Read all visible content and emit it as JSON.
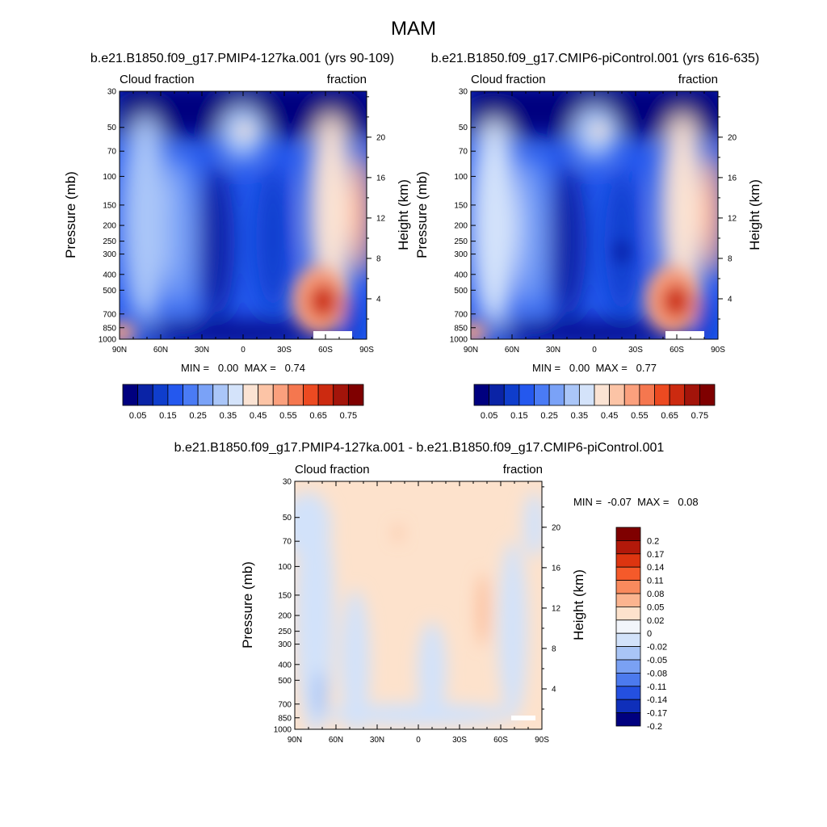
{
  "figure_title": "MAM",
  "chart_data": [
    {
      "type": "heatmap",
      "title": "b.e21.B1850.f09_g17.PMIP4-127ka.001 (yrs 90-109)",
      "left_string": "Cloud fraction",
      "right_string": "fraction",
      "ylabel": "Pressure (mb)",
      "ylabel_right": "Height (km)",
      "x_ticks": [
        "90N",
        "60N",
        "30N",
        "0",
        "30S",
        "60S",
        "90S"
      ],
      "y_ticks": [
        "30",
        "50",
        "70",
        "100",
        "150",
        "200",
        "250",
        "300",
        "400",
        "500",
        "700",
        "850",
        "1000"
      ],
      "y_ticks_right": [
        "20",
        "16",
        "12",
        "8",
        "4"
      ],
      "min_max_text": "MIN =   0.00  MAX =   0.74",
      "min": 0.0,
      "max": 0.74,
      "colorbar_labels": [
        "0.05",
        "0.15",
        "0.25",
        "0.35",
        "0.45",
        "0.55",
        "0.65",
        "0.75"
      ]
    },
    {
      "type": "heatmap",
      "title": "b.e21.B1850.f09_g17.CMIP6-piControl.001 (yrs 616-635)",
      "left_string": "Cloud fraction",
      "right_string": "fraction",
      "ylabel": "Pressure (mb)",
      "ylabel_right": "Height (km)",
      "x_ticks": [
        "90N",
        "60N",
        "30N",
        "0",
        "30S",
        "60S",
        "90S"
      ],
      "y_ticks": [
        "30",
        "50",
        "70",
        "100",
        "150",
        "200",
        "250",
        "300",
        "400",
        "500",
        "700",
        "850",
        "1000"
      ],
      "y_ticks_right": [
        "20",
        "16",
        "12",
        "8",
        "4"
      ],
      "min_max_text": "MIN =   0.00  MAX =   0.77",
      "min": 0.0,
      "max": 0.77,
      "colorbar_labels": [
        "0.05",
        "0.15",
        "0.25",
        "0.35",
        "0.45",
        "0.55",
        "0.65",
        "0.75"
      ]
    },
    {
      "type": "heatmap",
      "title": "b.e21.B1850.f09_g17.PMIP4-127ka.001 - b.e21.B1850.f09_g17.CMIP6-piControl.001",
      "left_string": "Cloud fraction",
      "right_string": "fraction",
      "ylabel": "Pressure (mb)",
      "ylabel_right": "Height (km)",
      "x_ticks": [
        "90N",
        "60N",
        "30N",
        "0",
        "30S",
        "60S",
        "90S"
      ],
      "y_ticks": [
        "30",
        "50",
        "70",
        "100",
        "150",
        "200",
        "250",
        "300",
        "400",
        "500",
        "700",
        "850",
        "1000"
      ],
      "y_ticks_right": [
        "20",
        "16",
        "12",
        "8",
        "4"
      ],
      "min_max_text": "MIN =  -0.07  MAX =   0.08",
      "min": -0.07,
      "max": 0.08,
      "colorbar_labels": [
        "0.2",
        "0.17",
        "0.14",
        "0.11",
        "0.08",
        "0.05",
        "0.02",
        "0",
        "-0.02",
        "-0.05",
        "-0.08",
        "-0.11",
        "-0.14",
        "-0.17",
        "-0.2"
      ]
    }
  ],
  "palettes": {
    "cloud": [
      "#00007f",
      "#0a23a6",
      "#0f3dcc",
      "#2458ee",
      "#4a7bf5",
      "#7aa2f7",
      "#aac6f8",
      "#d4e3fa",
      "#fbe3d3",
      "#fcc4a6",
      "#fba07d",
      "#f5774f",
      "#ec4a21",
      "#cc2a10",
      "#a3140a",
      "#7f0000"
    ],
    "diff": [
      "#7f0000",
      "#b2190a",
      "#dd3510",
      "#f55a2a",
      "#f98a5d",
      "#fbb48f",
      "#fde2cc",
      "#f2f5fb",
      "#d2e2fa",
      "#a9c5f6",
      "#7aa1f3",
      "#4c7aee",
      "#2450e0",
      "#0f2fba",
      "#00007f"
    ]
  }
}
